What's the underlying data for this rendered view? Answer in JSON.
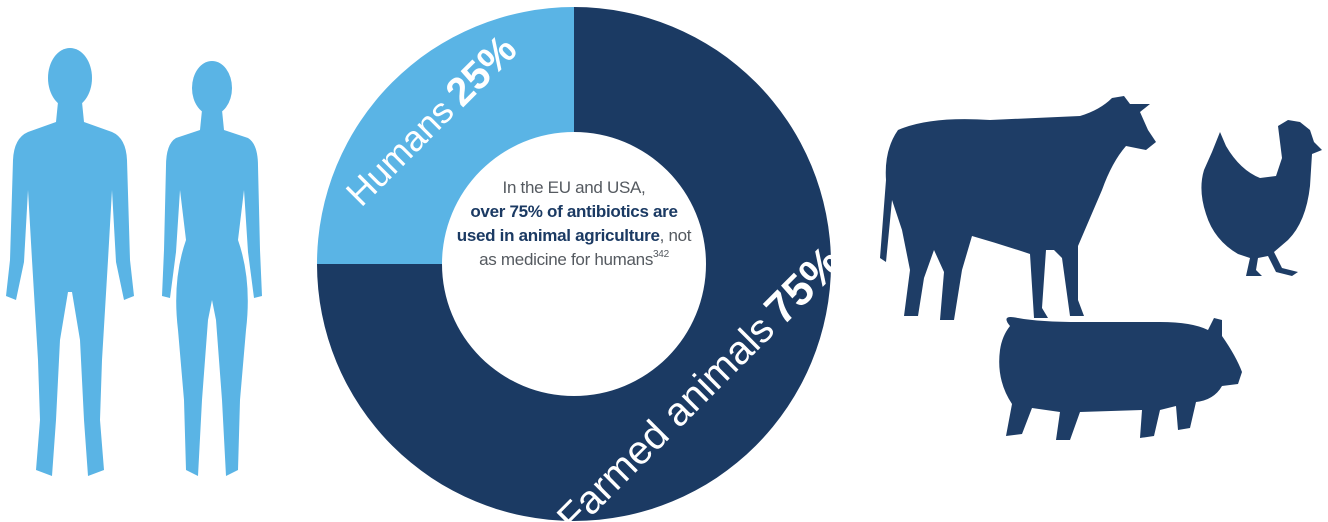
{
  "chart_data": {
    "type": "donut",
    "categories": [
      "Humans",
      "Farmed animals"
    ],
    "values": [
      25,
      75
    ],
    "value_labels": [
      "25%",
      "75%"
    ],
    "colors": [
      "#5ab4e5",
      "#1b3a63"
    ],
    "center_text": {
      "intro": "In the EU and USA,",
      "emphasis": "over 75% of antibiotics are used in animal agriculture",
      "rest": ", not as medicine for humans",
      "footnote": "342"
    }
  }
}
